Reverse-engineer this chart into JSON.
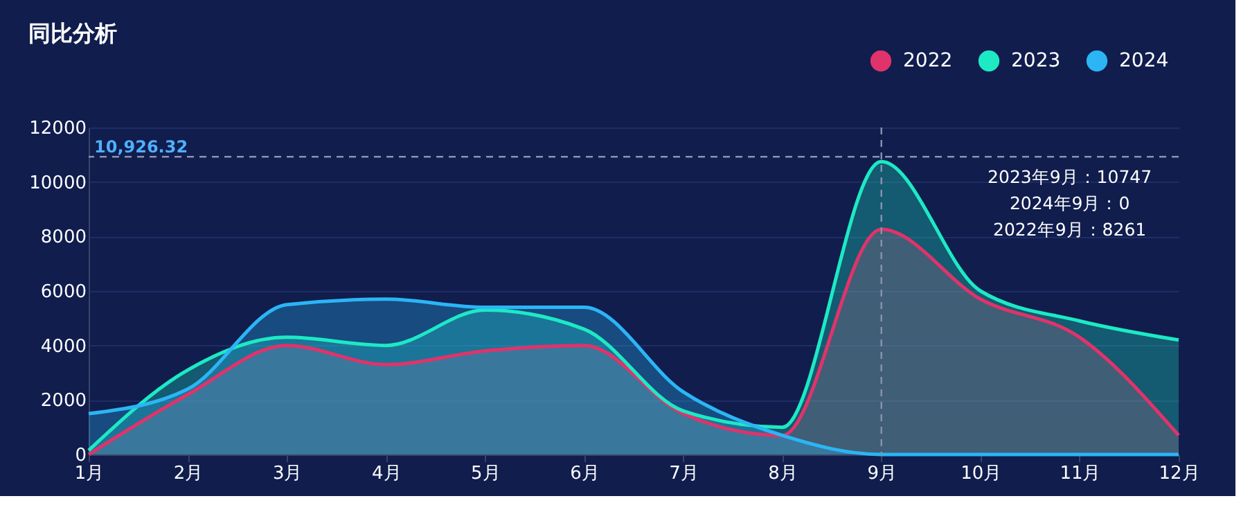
{
  "chart_data": {
    "type": "area",
    "title": "同比分析",
    "categories": [
      "1月",
      "2月",
      "3月",
      "4月",
      "5月",
      "6月",
      "7月",
      "8月",
      "9月",
      "10月",
      "11月",
      "12月"
    ],
    "series": [
      {
        "name": "2022",
        "color": "#e0336b",
        "values": [
          0,
          2200,
          4000,
          3300,
          3800,
          4000,
          1500,
          700,
          8261,
          5700,
          4300,
          700
        ]
      },
      {
        "name": "2023",
        "color": "#1de9c5",
        "values": [
          150,
          3100,
          4300,
          4000,
          5300,
          4600,
          1600,
          1000,
          10747,
          6000,
          4900,
          4200
        ]
      },
      {
        "name": "2024",
        "color": "#2bb5f5",
        "values": [
          1500,
          2400,
          5500,
          5700,
          5400,
          5400,
          2300,
          700,
          0,
          0,
          0,
          0
        ]
      }
    ],
    "ylim": [
      0,
      12000
    ],
    "yticks": [
      0,
      2000,
      4000,
      6000,
      8000,
      10000,
      12000
    ],
    "grid": "y",
    "legend": "top right",
    "ref_lines": [
      {
        "axis": "y",
        "value": 10926.32,
        "label": "10,926.32",
        "line_style": "dashed"
      },
      {
        "axis": "x",
        "value": "9月",
        "label": null,
        "line_style": "dashed"
      }
    ],
    "annotations": [
      "2023年9月：10747",
      "2024年9月：0",
      "2022年9月：8261"
    ]
  }
}
